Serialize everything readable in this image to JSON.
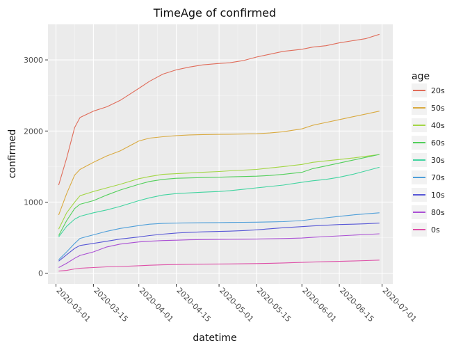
{
  "chart_data": {
    "type": "line",
    "title": "TimeAge of confirmed",
    "xlabel": "datetime",
    "ylabel": "confirmed",
    "xlim": [
      "2020-02-27",
      "2020-07-05"
    ],
    "ylim": [
      -150,
      3500
    ],
    "y_ticks": [
      0,
      1000,
      2000,
      3000
    ],
    "x_ticks": [
      "2020-03-01",
      "2020-03-15",
      "2020-04-01",
      "2020-04-15",
      "2020-05-01",
      "2020-05-15",
      "2020-06-01",
      "2020-06-15",
      "2020-07-01"
    ],
    "grid": true,
    "legend": {
      "title": "age",
      "placement": "right"
    },
    "x": [
      "2020-03-02",
      "2020-03-05",
      "2020-03-08",
      "2020-03-10",
      "2020-03-15",
      "2020-03-20",
      "2020-03-25",
      "2020-04-01",
      "2020-04-05",
      "2020-04-10",
      "2020-04-15",
      "2020-04-20",
      "2020-04-25",
      "2020-05-01",
      "2020-05-05",
      "2020-05-10",
      "2020-05-15",
      "2020-05-20",
      "2020-05-25",
      "2020-06-01",
      "2020-06-05",
      "2020-06-10",
      "2020-06-15",
      "2020-06-20",
      "2020-06-25",
      "2020-06-30"
    ],
    "series": [
      {
        "name": "20s",
        "color": "#e06c5a",
        "values": [
          1240,
          1620,
          2050,
          2190,
          2280,
          2340,
          2430,
          2600,
          2700,
          2800,
          2860,
          2900,
          2930,
          2950,
          2960,
          2990,
          3040,
          3080,
          3120,
          3150,
          3180,
          3200,
          3240,
          3270,
          3300,
          3360
        ]
      },
      {
        "name": "50s",
        "color": "#d9aa40",
        "values": [
          820,
          1120,
          1380,
          1460,
          1560,
          1650,
          1720,
          1860,
          1900,
          1920,
          1935,
          1945,
          1950,
          1953,
          1955,
          1958,
          1962,
          1972,
          1990,
          2030,
          2080,
          2120,
          2160,
          2200,
          2240,
          2280
        ]
      },
      {
        "name": "40s",
        "color": "#a3d645",
        "values": [
          620,
          850,
          1000,
          1090,
          1150,
          1200,
          1250,
          1330,
          1360,
          1390,
          1400,
          1410,
          1420,
          1430,
          1440,
          1450,
          1460,
          1480,
          1500,
          1530,
          1560,
          1580,
          1600,
          1620,
          1645,
          1670
        ]
      },
      {
        "name": "60s",
        "color": "#52cf5b",
        "values": [
          530,
          740,
          910,
          970,
          1020,
          1100,
          1170,
          1250,
          1290,
          1320,
          1335,
          1340,
          1345,
          1350,
          1355,
          1360,
          1365,
          1375,
          1390,
          1420,
          1470,
          1510,
          1550,
          1590,
          1630,
          1670
        ]
      },
      {
        "name": "30s",
        "color": "#42d4a0",
        "values": [
          510,
          660,
          760,
          800,
          850,
          890,
          940,
          1020,
          1060,
          1100,
          1120,
          1130,
          1140,
          1150,
          1160,
          1180,
          1200,
          1220,
          1240,
          1280,
          1300,
          1320,
          1350,
          1390,
          1440,
          1490
        ]
      },
      {
        "name": "70s",
        "color": "#4f9fd9",
        "values": [
          190,
          300,
          420,
          490,
          540,
          590,
          630,
          670,
          690,
          700,
          705,
          708,
          710,
          712,
          714,
          716,
          718,
          722,
          726,
          740,
          760,
          780,
          800,
          820,
          835,
          850
        ]
      },
      {
        "name": "10s",
        "color": "#5656d6",
        "values": [
          170,
          260,
          350,
          390,
          420,
          450,
          480,
          510,
          530,
          550,
          565,
          575,
          582,
          588,
          592,
          600,
          610,
          625,
          640,
          655,
          665,
          675,
          685,
          690,
          695,
          705
        ]
      },
      {
        "name": "80s",
        "color": "#aa4fd4",
        "values": [
          80,
          140,
          210,
          250,
          300,
          370,
          410,
          440,
          450,
          460,
          465,
          470,
          473,
          475,
          476,
          478,
          480,
          484,
          488,
          495,
          505,
          515,
          525,
          535,
          545,
          555
        ]
      },
      {
        "name": "0s",
        "color": "#de4fa7",
        "values": [
          30,
          40,
          60,
          70,
          80,
          90,
          95,
          105,
          112,
          118,
          122,
          126,
          128,
          130,
          131,
          133,
          136,
          140,
          145,
          152,
          157,
          162,
          167,
          172,
          178,
          185
        ]
      }
    ]
  }
}
